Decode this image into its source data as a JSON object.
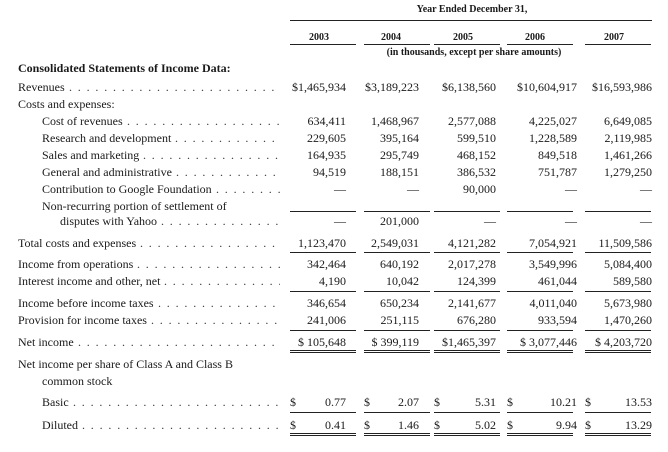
{
  "header": {
    "span_title": "Year Ended December 31,",
    "years": [
      "2003",
      "2004",
      "2005",
      "2006",
      "2007"
    ],
    "units_note": "(in thousands, except per share amounts)"
  },
  "section_title": "Consolidated Statements of Income Data:",
  "rows": [
    {
      "label": "Revenues",
      "indent": 0,
      "leader": true,
      "values": [
        "$1,465,934",
        "$3,189,223",
        "$6,138,560",
        "$10,604,917",
        "$16,593,986"
      ]
    },
    {
      "label": "Costs and expenses:",
      "indent": 0,
      "leader": false,
      "values": []
    },
    {
      "label": "Cost of revenues",
      "indent": 1,
      "leader": true,
      "values": [
        "634,411",
        "1,468,967",
        "2,577,088",
        "4,225,027",
        "6,649,085"
      ]
    },
    {
      "label": "Research and development",
      "indent": 1,
      "leader": true,
      "values": [
        "229,605",
        "395,164",
        "599,510",
        "1,228,589",
        "2,119,985"
      ]
    },
    {
      "label": "Sales and marketing",
      "indent": 1,
      "leader": true,
      "values": [
        "164,935",
        "295,749",
        "468,152",
        "849,518",
        "1,461,266"
      ]
    },
    {
      "label": "General and administrative",
      "indent": 1,
      "leader": true,
      "values": [
        "94,519",
        "188,151",
        "386,532",
        "751,787",
        "1,279,250"
      ]
    },
    {
      "label": "Contribution to Google Foundation",
      "indent": 1,
      "leader": true,
      "values": [
        "—",
        "—",
        "90,000",
        "—",
        "—"
      ]
    },
    {
      "label": "Non-recurring portion of settlement of",
      "indent": 1,
      "leader": false,
      "values": []
    },
    {
      "label": "disputes with Yahoo",
      "indent": 2,
      "leader": true,
      "values": [
        "—",
        "201,000",
        "—",
        "—",
        "—"
      ]
    },
    {
      "label": "Total costs and expenses",
      "indent": 0,
      "leader": true,
      "values": [
        "1,123,470",
        "2,549,031",
        "4,121,282",
        "7,054,921",
        "11,509,586"
      ]
    },
    {
      "label": "Income from operations",
      "indent": 0,
      "leader": true,
      "values": [
        "342,464",
        "640,192",
        "2,017,278",
        "3,549,996",
        "5,084,400"
      ]
    },
    {
      "label": "Interest income and other, net",
      "indent": 0,
      "leader": true,
      "values": [
        "4,190",
        "10,042",
        "124,399",
        "461,044",
        "589,580"
      ]
    },
    {
      "label": "Income before income taxes",
      "indent": 0,
      "leader": true,
      "values": [
        "346,654",
        "650,234",
        "2,141,677",
        "4,011,040",
        "5,673,980"
      ]
    },
    {
      "label": "Provision for income taxes",
      "indent": 0,
      "leader": true,
      "values": [
        "241,006",
        "251,115",
        "676,280",
        "933,594",
        "1,470,260"
      ]
    },
    {
      "label": "Net income",
      "indent": 0,
      "leader": true,
      "values": [
        "$ 105,648",
        "$ 399,119",
        "$1,465,397",
        "$ 3,077,446",
        "$ 4,203,720"
      ]
    },
    {
      "label": "Net income per share of Class A and Class B",
      "indent": 0,
      "leader": false,
      "values": []
    },
    {
      "label": "common stock",
      "indent": 1,
      "leader": false,
      "values": []
    }
  ],
  "per_share": [
    {
      "label": "Basic",
      "values": [
        "0.77",
        "2.07",
        "5.31",
        "10.21",
        "13.53"
      ],
      "currency": "$"
    },
    {
      "label": "Diluted",
      "values": [
        "0.41",
        "1.46",
        "5.02",
        "9.94",
        "13.29"
      ],
      "currency": "$"
    }
  ],
  "leader_text": ". . . . . . . . . . . . . . . . . . . . . . . . . . . . . . . . . . . . . . . ."
}
